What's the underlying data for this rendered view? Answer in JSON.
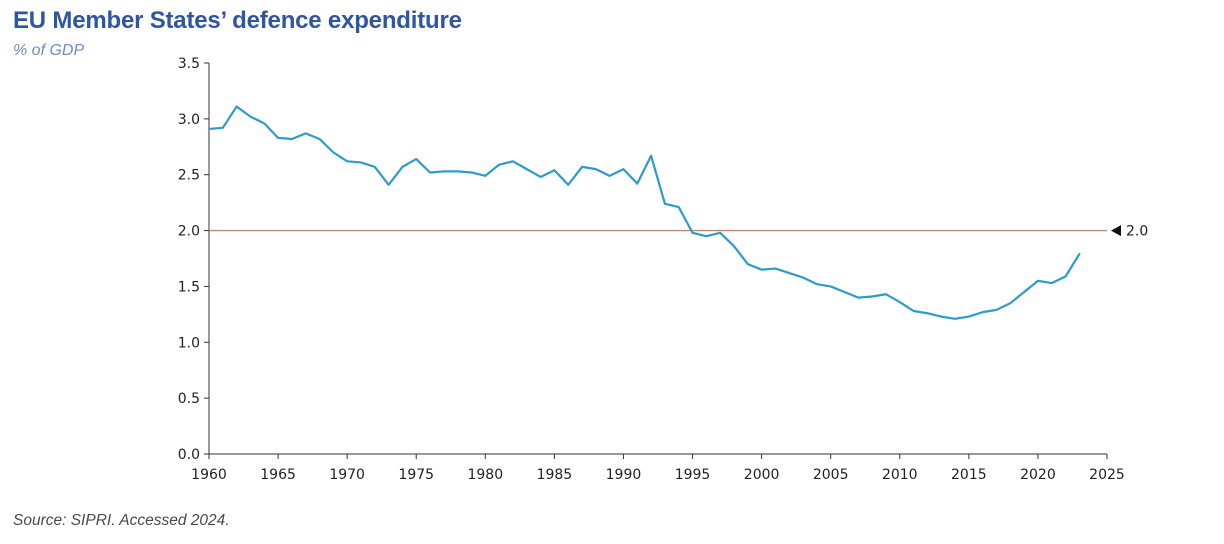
{
  "title": "EU Member States’ defence expenditure",
  "subtitle": "% of GDP",
  "source": "Source: SIPRI. Accessed 2024.",
  "colors": {
    "line": "#2e9bcc",
    "reference_line": "#b48a78",
    "axis": "#333333",
    "title": "#2f55a4",
    "subtitle": "#6f8cc6"
  },
  "chart_data": {
    "type": "line",
    "title": "EU Member States’ defence expenditure",
    "ylabel": "% of GDP",
    "xlabel": "",
    "xlim": [
      1960,
      2025
    ],
    "ylim": [
      0,
      3.5
    ],
    "x_ticks": [
      "1960",
      "1965",
      "1970",
      "1975",
      "1980",
      "1985",
      "1990",
      "1995",
      "2000",
      "2005",
      "2010",
      "2015",
      "2020",
      "2025"
    ],
    "y_ticks": [
      "0.0",
      "0.5",
      "1.0",
      "1.5",
      "2.0",
      "2.5",
      "3.0",
      "3.5"
    ],
    "grid": false,
    "reference_line": {
      "value": 2.0,
      "label": "2.0"
    },
    "series": [
      {
        "name": "EU Member States defence expenditure (% of GDP)",
        "x": [
          1960,
          1961,
          1962,
          1963,
          1964,
          1965,
          1966,
          1967,
          1968,
          1969,
          1970,
          1971,
          1972,
          1973,
          1974,
          1975,
          1976,
          1977,
          1978,
          1979,
          1980,
          1981,
          1982,
          1983,
          1984,
          1985,
          1986,
          1987,
          1988,
          1989,
          1990,
          1991,
          1992,
          1993,
          1994,
          1995,
          1996,
          1997,
          1998,
          1999,
          2000,
          2001,
          2002,
          2003,
          2004,
          2005,
          2006,
          2007,
          2008,
          2009,
          2010,
          2011,
          2012,
          2013,
          2014,
          2015,
          2016,
          2017,
          2018,
          2019,
          2020,
          2021,
          2022,
          2023
        ],
        "values": [
          2.91,
          2.92,
          3.11,
          3.02,
          2.96,
          2.83,
          2.82,
          2.87,
          2.82,
          2.7,
          2.62,
          2.61,
          2.57,
          2.41,
          2.57,
          2.64,
          2.52,
          2.53,
          2.53,
          2.52,
          2.49,
          2.59,
          2.62,
          2.55,
          2.48,
          2.54,
          2.41,
          2.57,
          2.55,
          2.49,
          2.55,
          2.42,
          2.67,
          2.24,
          2.21,
          1.98,
          1.95,
          1.98,
          1.86,
          1.7,
          1.65,
          1.66,
          1.62,
          1.58,
          1.52,
          1.5,
          1.45,
          1.4,
          1.41,
          1.43,
          1.36,
          1.28,
          1.26,
          1.23,
          1.21,
          1.23,
          1.27,
          1.29,
          1.35,
          1.45,
          1.55,
          1.53,
          1.59,
          1.79
        ]
      }
    ]
  }
}
